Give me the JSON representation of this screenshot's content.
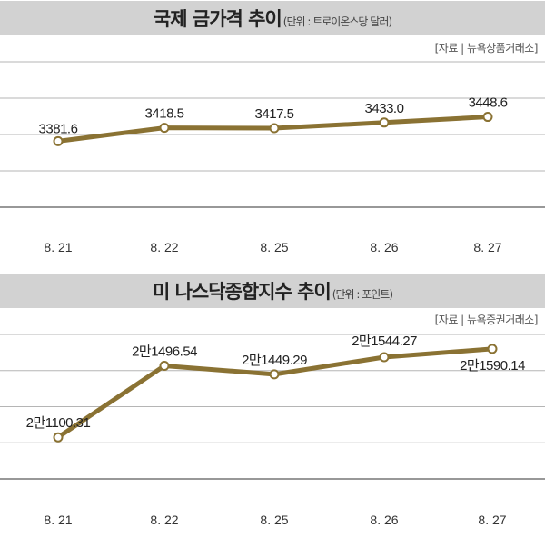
{
  "chart_data": [
    {
      "type": "line",
      "title": "국제 금가격 추이",
      "unit": "(단위 : 트로이온스당 달러)",
      "source": "[자료 | 뉴욕상품거래소]",
      "categories": [
        "8. 21",
        "8. 22",
        "8. 25",
        "8. 26",
        "8. 27"
      ],
      "values": [
        3381.6,
        3418.5,
        3417.5,
        3433.0,
        3448.6
      ],
      "labels": [
        "3381.6",
        "3418.5",
        "3417.5",
        "3433.0",
        "3448.6"
      ],
      "ylim": [
        3200,
        3600
      ],
      "grid": true,
      "color": "#8a7233"
    },
    {
      "type": "line",
      "title": "미 나스닥종합지수 추이",
      "unit": "(단위 : 포인트)",
      "source": "[자료 | 뉴욕증권거래소]",
      "categories": [
        "8. 21",
        "8. 22",
        "8. 25",
        "8. 26",
        "8. 27"
      ],
      "values": [
        21100.31,
        21496.54,
        21449.29,
        21544.27,
        21590.14
      ],
      "labels": [
        "2만1100.31",
        "2만1496.54",
        "2만1449.29",
        "2만1544.27",
        "2만1590.14"
      ],
      "ylim": [
        20870,
        21670
      ],
      "grid": true,
      "color": "#8a7233"
    }
  ]
}
